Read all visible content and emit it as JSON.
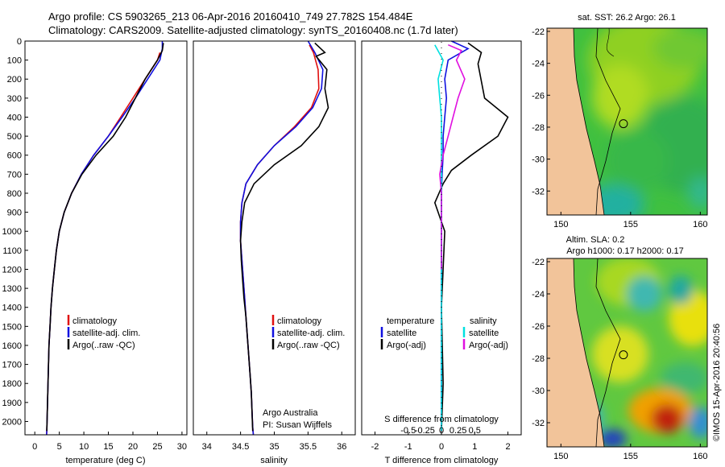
{
  "header": {
    "line1": "Argo profile: CS 5903265_213 06-Apr-2016 20160410_749 27.782S 154.484E",
    "line2": "Climatology: CARS2009. Satellite-adjusted climatology: synTS_20160408.nc (1.7d later)"
  },
  "colors": {
    "climatology": "#e01010",
    "satellite": "#1010e0",
    "argo": "#000000",
    "sal_satellite": "#00e0e0",
    "sal_argo": "#e010e0",
    "land": "#f2c49a"
  },
  "chart_data": [
    {
      "type": "line",
      "id": "temperature",
      "xlabel": "temperature (deg C)",
      "ylabel": "",
      "xlim": [
        -2,
        31
      ],
      "ylim": [
        2070,
        0
      ],
      "xticks": [
        0,
        5,
        10,
        15,
        20,
        25,
        30
      ],
      "yticks": [
        0,
        100,
        200,
        300,
        400,
        500,
        600,
        700,
        800,
        900,
        1000,
        1100,
        1200,
        1300,
        1400,
        1500,
        1600,
        1700,
        1800,
        1900,
        2000
      ],
      "legend": [
        "climatology",
        "satellite-adj. clim.",
        "Argo(..raw -QC)"
      ],
      "series": [
        {
          "name": "climatology",
          "color": "#e01010",
          "x": [
            25.5,
            25.0,
            22.5,
            20.0,
            17.5,
            15.0,
            12.0,
            9.5,
            7.5,
            6.0,
            5.0,
            4.4,
            4.0,
            3.6,
            3.3,
            3.1,
            2.9,
            2.8,
            2.7,
            2.6,
            2.5,
            2.45,
            2.4
          ],
          "y": [
            60,
            100,
            200,
            300,
            400,
            500,
            600,
            700,
            800,
            900,
            1000,
            1100,
            1200,
            1300,
            1400,
            1500,
            1600,
            1700,
            1800,
            1900,
            2000,
            2050,
            2070
          ]
        },
        {
          "name": "satellite-adj. clim.",
          "color": "#1010e0",
          "x": [
            26.0,
            26.0,
            25.5,
            23.0,
            20.5,
            17.8,
            15.0,
            12.0,
            9.5,
            7.5,
            6.0,
            5.0,
            4.4,
            4.0,
            3.6,
            3.3,
            3.1,
            2.9,
            2.8,
            2.7,
            2.6,
            2.5,
            2.45,
            2.4
          ],
          "y": [
            0,
            40,
            100,
            200,
            300,
            400,
            500,
            600,
            700,
            800,
            900,
            1000,
            1100,
            1200,
            1300,
            1400,
            1500,
            1600,
            1700,
            1800,
            1900,
            2000,
            2050,
            2070
          ]
        },
        {
          "name": "Argo(..raw -QC)",
          "color": "#000000",
          "x": [
            26.2,
            26.0,
            25.0,
            22.5,
            20.5,
            18.5,
            16.0,
            12.5,
            9.6,
            7.5,
            6.0,
            5.0,
            4.4,
            4.0,
            3.6,
            3.3,
            3.1,
            2.9,
            2.8,
            2.7,
            2.6,
            2.5,
            2.45
          ],
          "y": [
            10,
            50,
            100,
            200,
            300,
            400,
            500,
            600,
            700,
            800,
            900,
            1000,
            1100,
            1200,
            1300,
            1400,
            1500,
            1600,
            1700,
            1800,
            1900,
            2000,
            2050
          ]
        }
      ]
    },
    {
      "type": "line",
      "id": "salinity",
      "xlabel": "salinity",
      "xlim": [
        33.8,
        36.2
      ],
      "ylim": [
        2070,
        0
      ],
      "xticks": [
        34,
        34.5,
        35,
        35.5,
        36
      ],
      "legend": [
        "climatology",
        "satellite-adj. clim.",
        "Argo(..raw -QC)"
      ],
      "annotation": [
        "Argo Australia",
        "PI: Susan Wijffels"
      ],
      "series": [
        {
          "name": "climatology",
          "color": "#e01010",
          "x": [
            35.52,
            35.58,
            35.65,
            35.66,
            35.55,
            35.3,
            35.0,
            34.75,
            34.58,
            34.52,
            34.5,
            34.5,
            34.52,
            34.54,
            34.56,
            34.58,
            34.6,
            34.62,
            34.64,
            34.66,
            34.67,
            34.68,
            34.69
          ],
          "y": [
            20,
            60,
            150,
            250,
            350,
            450,
            550,
            650,
            750,
            850,
            950,
            1050,
            1150,
            1250,
            1350,
            1450,
            1550,
            1650,
            1750,
            1850,
            1950,
            2030,
            2070
          ]
        },
        {
          "name": "satellite-adj. clim.",
          "color": "#1010e0",
          "x": [
            35.5,
            35.6,
            35.72,
            35.7,
            35.57,
            35.32,
            35.0,
            34.75,
            34.58,
            34.52,
            34.5,
            34.5,
            34.52,
            34.54,
            34.56,
            34.58,
            34.6,
            34.62,
            34.64,
            34.66,
            34.67,
            34.68,
            34.69
          ],
          "y": [
            0,
            60,
            150,
            250,
            350,
            450,
            550,
            650,
            750,
            850,
            950,
            1050,
            1150,
            1250,
            1350,
            1450,
            1550,
            1650,
            1750,
            1850,
            1950,
            2030,
            2070
          ]
        },
        {
          "name": "Argo(..raw -QC)",
          "color": "#000000",
          "x": [
            35.6,
            35.75,
            35.62,
            35.78,
            35.75,
            35.8,
            35.66,
            35.4,
            35.0,
            34.7,
            34.56,
            34.52,
            34.5,
            34.51,
            34.53,
            34.55,
            34.58,
            34.6,
            34.62,
            34.64,
            34.66,
            34.68
          ],
          "y": [
            10,
            60,
            80,
            150,
            250,
            350,
            450,
            550,
            650,
            750,
            850,
            950,
            1050,
            1150,
            1250,
            1350,
            1450,
            1550,
            1650,
            1750,
            1850,
            2050
          ]
        }
      ]
    },
    {
      "type": "line",
      "id": "differences",
      "xlabel": "T difference from climatology",
      "xlabel_top": "S difference from climatology",
      "xlim": [
        -2.4,
        2.4
      ],
      "ylim": [
        2070,
        0
      ],
      "xticks": [
        -2,
        -1,
        0,
        1,
        2
      ],
      "xticks_top": [
        -0.5,
        -0.25,
        0,
        0.25,
        0.5
      ],
      "legend_temperature_title": "temperature",
      "legend_temperature": [
        "satellite",
        "Argo(-adj)"
      ],
      "legend_salinity_title": "salinity",
      "legend_salinity": [
        "satellite",
        "Argo(-adj)"
      ],
      "series": [
        {
          "name": "temperature satellite",
          "color": "#1010e0",
          "x": [
            0.3,
            0.8,
            0.2,
            0.1,
            0.15,
            0.1,
            0.05,
            0.05,
            0.02,
            0.0,
            0.0,
            0.0,
            0.0,
            0.0
          ],
          "y": [
            0,
            40,
            100,
            200,
            300,
            400,
            500,
            600,
            700,
            800,
            1000,
            1400,
            1800,
            2050
          ]
        },
        {
          "name": "temperature Argo(-adj)",
          "color": "#000000",
          "x": [
            0.8,
            1.2,
            1.1,
            1.3,
            2.0,
            1.7,
            0.9,
            0.3,
            0.05,
            -0.2,
            0.1,
            0.0,
            0.05,
            0.0
          ],
          "y": [
            10,
            60,
            120,
            300,
            400,
            500,
            600,
            680,
            750,
            850,
            1000,
            1400,
            1800,
            2050
          ]
        },
        {
          "name": "salinity satellite",
          "color": "#00e0e0",
          "x": [
            -0.2,
            0.05,
            -0.1,
            -0.05,
            0.0,
            0.0,
            0.0,
            0.0,
            0.0,
            0.0,
            0.0
          ],
          "y": [
            20,
            100,
            200,
            300,
            400,
            500,
            600,
            800,
            1200,
            1600,
            2050
          ]
        },
        {
          "name": "salinity Argo(-adj)",
          "color": "#e010e0",
          "x": [
            0.2,
            0.6,
            0.45,
            0.7,
            0.5,
            0.35,
            0.2,
            0.05,
            -0.05,
            0.0,
            0.0,
            0.0
          ],
          "y": [
            20,
            50,
            100,
            200,
            300,
            400,
            500,
            600,
            700,
            800,
            1000,
            1200
          ]
        }
      ]
    }
  ],
  "maps": {
    "sst": {
      "title": "sat. SST: 26.2 Argo: 26.1",
      "xticks": [
        150,
        155,
        160
      ],
      "yticks": [
        -22,
        -24,
        -26,
        -28,
        -30,
        -32
      ],
      "xlim": [
        149,
        160.5
      ],
      "ylim": [
        -33.5,
        -21.8
      ],
      "argo_position": [
        154.484,
        -27.782
      ]
    },
    "sla": {
      "title1": "Altim. SLA: 0.2",
      "title2": "Argo h1000: 0.17 h2000: 0.17",
      "xticks": [
        150,
        155,
        160
      ],
      "yticks": [
        -22,
        -24,
        -26,
        -28,
        -30,
        -32
      ],
      "xlim": [
        149,
        160.5
      ],
      "ylim": [
        -33.5,
        -21.8
      ],
      "argo_position": [
        154.484,
        -27.782
      ]
    }
  },
  "credit": "©IMOS 15-Apr-2016 20:40:56"
}
